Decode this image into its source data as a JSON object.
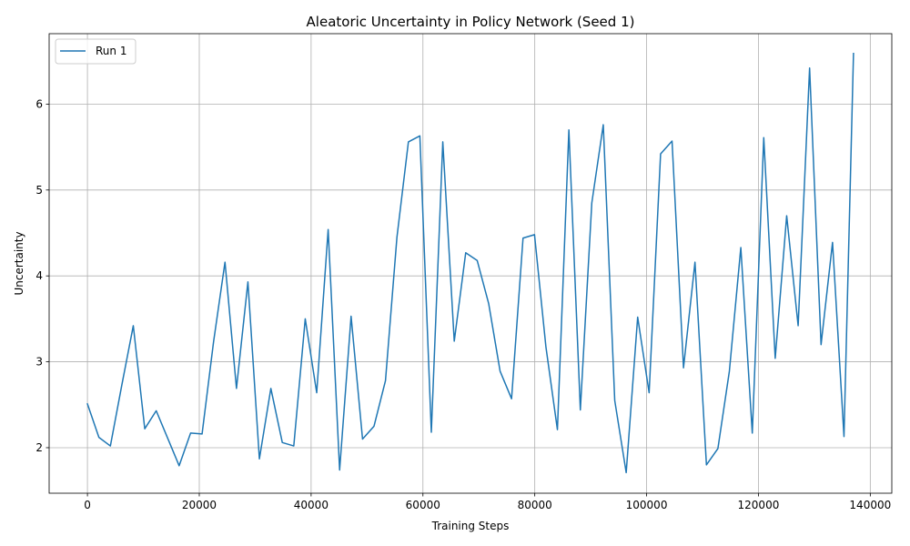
{
  "chart_data": {
    "type": "line",
    "title": "Aleatoric Uncertainty in Policy Network (Seed 1)",
    "xlabel": "Training Steps",
    "ylabel": "Uncertainty",
    "xlim": [
      -6850,
      143850
    ],
    "ylim": [
      1.47,
      6.82
    ],
    "xticks": [
      0,
      20000,
      40000,
      60000,
      80000,
      100000,
      120000,
      140000
    ],
    "xtick_labels": [
      "0",
      "20000",
      "40000",
      "60000",
      "80000",
      "100000",
      "120000",
      "140000"
    ],
    "yticks": [
      2,
      3,
      4,
      5,
      6
    ],
    "ytick_labels": [
      "2",
      "3",
      "4",
      "5",
      "6"
    ],
    "grid": true,
    "legend": {
      "position": "top-left",
      "entries": [
        "Run 1"
      ]
    },
    "series": [
      {
        "name": "Run 1",
        "color": "#1f77b4",
        "x": [
          0,
          2050,
          4100,
          6150,
          8200,
          10250,
          12300,
          14350,
          16400,
          18450,
          20500,
          22550,
          24600,
          26650,
          28700,
          30750,
          32800,
          34850,
          36900,
          38950,
          41000,
          43050,
          45100,
          47150,
          49200,
          51250,
          53300,
          55350,
          57400,
          59450,
          61500,
          63550,
          65600,
          67650,
          69700,
          71750,
          73800,
          75850,
          77900,
          79950,
          82000,
          84050,
          86100,
          88150,
          90200,
          92250,
          94300,
          96350,
          98400,
          100450,
          102500,
          104550,
          106600,
          108650,
          110700,
          112750,
          114800,
          116850,
          118900,
          120950,
          123000,
          125050,
          127100,
          129150,
          131200,
          133250,
          135300,
          137000
        ],
        "y": [
          2.51,
          2.12,
          2.02,
          2.73,
          3.42,
          2.22,
          2.43,
          2.11,
          1.79,
          2.17,
          2.16,
          3.23,
          4.16,
          2.69,
          3.93,
          1.87,
          2.69,
          2.06,
          2.02,
          3.5,
          2.64,
          4.54,
          1.74,
          3.53,
          2.1,
          2.25,
          2.78,
          4.45,
          5.56,
          5.63,
          2.18,
          5.56,
          3.24,
          4.27,
          4.18,
          3.68,
          2.89,
          2.57,
          4.44,
          4.48,
          3.17,
          2.21,
          5.7,
          2.44,
          4.85,
          5.76,
          2.55,
          1.71,
          3.52,
          2.64,
          5.42,
          5.57,
          2.93,
          4.16,
          1.8,
          1.99,
          2.89,
          4.33,
          2.17,
          5.61,
          3.04,
          4.7,
          3.42,
          6.42,
          3.2,
          4.39,
          2.13,
          6.59
        ]
      }
    ]
  }
}
